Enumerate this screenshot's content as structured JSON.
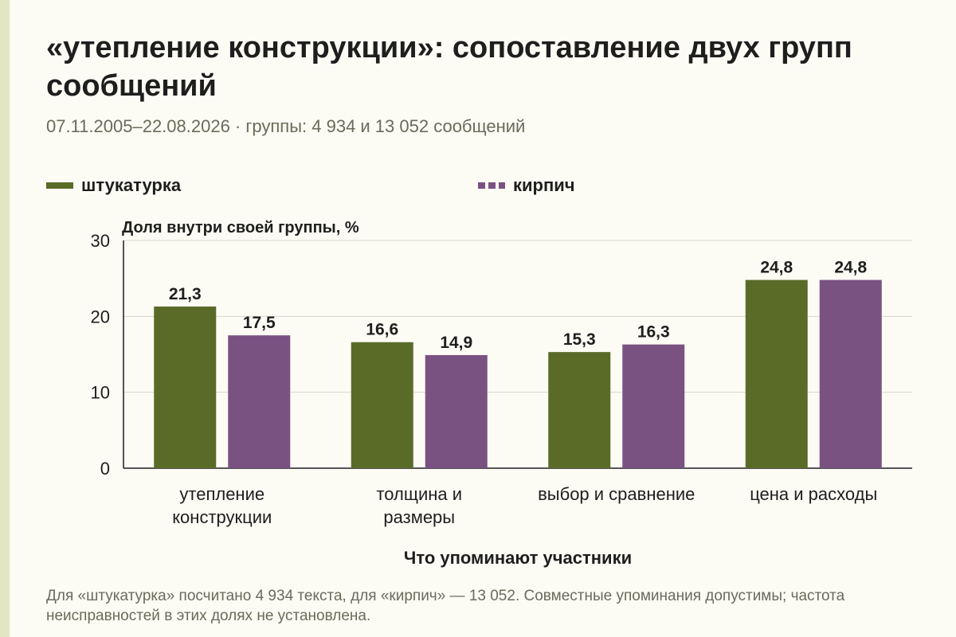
{
  "title": "«утепление конструкции»: сопоставление двух групп сообщений",
  "subtitle": "07.11.2005–22.08.2026 · группы: 4 934 и 13 052 сообщений",
  "legend": [
    {
      "label": "штукатурка",
      "style": "solid"
    },
    {
      "label": "кирпич",
      "style": "dashed"
    }
  ],
  "colors": {
    "series_a": "#5a6b28",
    "series_b": "#7a5282",
    "grid": "#d8d8cc",
    "axis": "#1e1e1e"
  },
  "footnote": "Для «штукатурка» посчитано 4 934 текста, для «кирпич» — 13 052. Совместные упоминания допустимы; частота неисправностей в этих долях не установлена.",
  "chart_data": {
    "type": "bar",
    "title": "«утепление конструкции»: сопоставление двух групп сообщений",
    "ylabel": "Доля внутри своей группы, %",
    "xlabel": "Что упоминают участники",
    "ylim": [
      0,
      30
    ],
    "yticks": [
      0,
      10,
      20,
      30
    ],
    "grid": true,
    "legend_position": "top",
    "categories": [
      [
        "утепление",
        "конструкции"
      ],
      [
        "толщина и",
        "размеры"
      ],
      [
        "выбор и сравнение"
      ],
      [
        "цена и расходы"
      ]
    ],
    "series": [
      {
        "name": "штукатурка",
        "values": [
          21.3,
          16.6,
          15.3,
          24.8
        ],
        "labels": [
          "21,3",
          "16,6",
          "15,3",
          "24,8"
        ]
      },
      {
        "name": "кирпич",
        "values": [
          17.5,
          14.9,
          16.3,
          24.8
        ],
        "labels": [
          "17,5",
          "14,9",
          "16,3",
          "24,8"
        ]
      }
    ]
  }
}
